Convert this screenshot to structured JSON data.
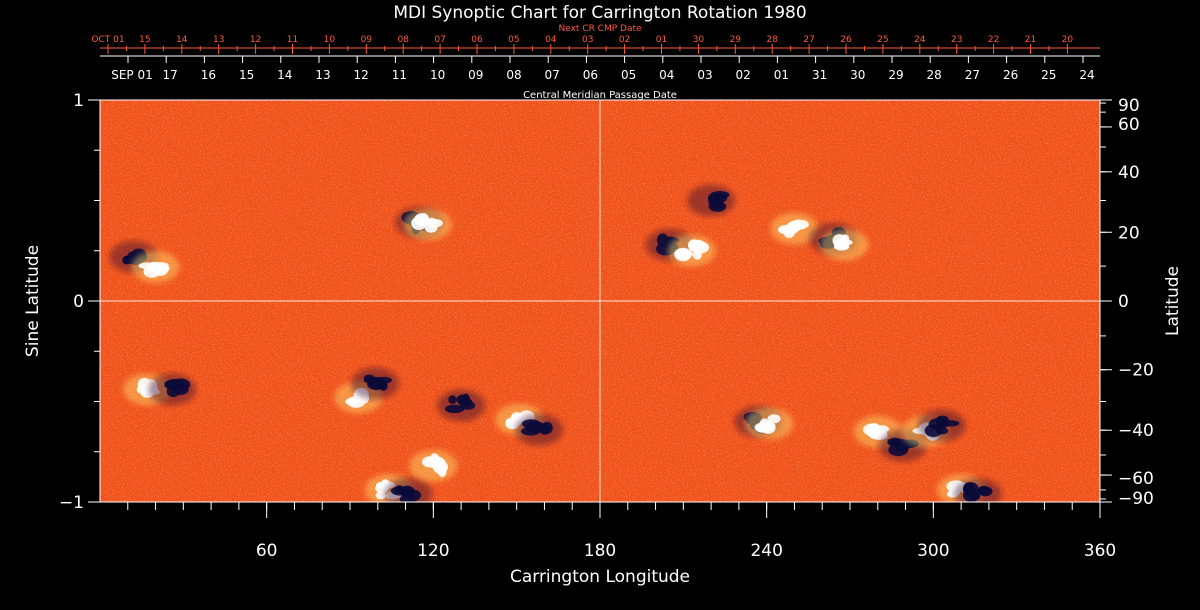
{
  "title": "MDI Synoptic Chart for Carrington Rotation 1980",
  "colors": {
    "background": "#000000",
    "axis": "#ffffff",
    "next_dates": "#ff5a3c",
    "map_base": "#f0501a",
    "positive_polarity": "#ffffff",
    "negative_polarity": "#0a0a3a"
  },
  "chart_data": {
    "type": "heatmap",
    "title": "MDI Synoptic Chart for Carrington Rotation 1980",
    "xlabel": "Carrington Longitude",
    "ylabel": "Sine Latitude",
    "y2label": "Latitude",
    "xlim": [
      0,
      360
    ],
    "ylim": [
      -1,
      1
    ],
    "x_ticks": [
      60,
      120,
      180,
      240,
      300,
      360
    ],
    "x_tick_labels": [
      "60",
      "120",
      "180",
      "240",
      "300",
      "360"
    ],
    "y_ticks": [
      -1,
      0,
      1
    ],
    "y_tick_labels": [
      "−1",
      "0",
      "1"
    ],
    "latitude_ticks": [
      90,
      60,
      40,
      20,
      0,
      -20,
      -40,
      -60,
      -90
    ],
    "latitude_tick_labels": [
      "90",
      "60",
      "40",
      "20",
      "0",
      "−20",
      "−40",
      "−60",
      "−90"
    ],
    "grid_lines": {
      "longitude": 180,
      "sine_latitude": 0
    },
    "cmp_axis_label": "Central Meridian Passage Date",
    "cmp_dates": [
      "SEP 01",
      "17",
      "16",
      "15",
      "14",
      "13",
      "12",
      "11",
      "10",
      "09",
      "08",
      "07",
      "06",
      "05",
      "04",
      "03",
      "02",
      "01",
      "31",
      "30",
      "29",
      "28",
      "27",
      "26",
      "25",
      "24"
    ],
    "next_cmp_axis_label": "Next CR CMP Date",
    "next_cmp_dates": [
      "OCT 01",
      "15",
      "14",
      "13",
      "12",
      "11",
      "10",
      "09",
      "08",
      "07",
      "06",
      "05",
      "04",
      "03",
      "02",
      "01",
      "30",
      "29",
      "28",
      "27",
      "26",
      "25",
      "24",
      "23",
      "22",
      "21",
      "20"
    ],
    "active_regions": [
      {
        "lon": 12,
        "sinlat": 0.22,
        "polarity": "negative"
      },
      {
        "lon": 20,
        "sinlat": 0.17,
        "polarity": "positive"
      },
      {
        "lon": 17,
        "sinlat": -0.44,
        "polarity": "positive"
      },
      {
        "lon": 26,
        "sinlat": -0.44,
        "polarity": "negative"
      },
      {
        "lon": 115,
        "sinlat": 0.39,
        "polarity": "negative"
      },
      {
        "lon": 118,
        "sinlat": 0.38,
        "polarity": "positive"
      },
      {
        "lon": 93,
        "sinlat": -0.48,
        "polarity": "positive"
      },
      {
        "lon": 99,
        "sinlat": -0.41,
        "polarity": "negative"
      },
      {
        "lon": 104,
        "sinlat": -0.94,
        "polarity": "positive"
      },
      {
        "lon": 111,
        "sinlat": -0.96,
        "polarity": "negative"
      },
      {
        "lon": 120,
        "sinlat": -0.82,
        "polarity": "positive"
      },
      {
        "lon": 130,
        "sinlat": -0.52,
        "polarity": "negative"
      },
      {
        "lon": 151,
        "sinlat": -0.59,
        "polarity": "positive"
      },
      {
        "lon": 158,
        "sinlat": -0.64,
        "polarity": "negative"
      },
      {
        "lon": 205,
        "sinlat": 0.28,
        "polarity": "negative"
      },
      {
        "lon": 213,
        "sinlat": 0.25,
        "polarity": "positive"
      },
      {
        "lon": 220,
        "sinlat": 0.5,
        "polarity": "negative"
      },
      {
        "lon": 250,
        "sinlat": 0.36,
        "polarity": "positive"
      },
      {
        "lon": 264,
        "sinlat": 0.31,
        "polarity": "negative"
      },
      {
        "lon": 268,
        "sinlat": 0.28,
        "polarity": "positive"
      },
      {
        "lon": 237,
        "sinlat": -0.6,
        "polarity": "negative"
      },
      {
        "lon": 241,
        "sinlat": -0.61,
        "polarity": "positive"
      },
      {
        "lon": 280,
        "sinlat": -0.65,
        "polarity": "positive"
      },
      {
        "lon": 289,
        "sinlat": -0.72,
        "polarity": "negative"
      },
      {
        "lon": 297,
        "sinlat": -0.65,
        "polarity": "positive"
      },
      {
        "lon": 303,
        "sinlat": -0.62,
        "polarity": "negative"
      },
      {
        "lon": 310,
        "sinlat": -0.94,
        "polarity": "positive"
      },
      {
        "lon": 316,
        "sinlat": -0.96,
        "polarity": "negative"
      }
    ]
  }
}
